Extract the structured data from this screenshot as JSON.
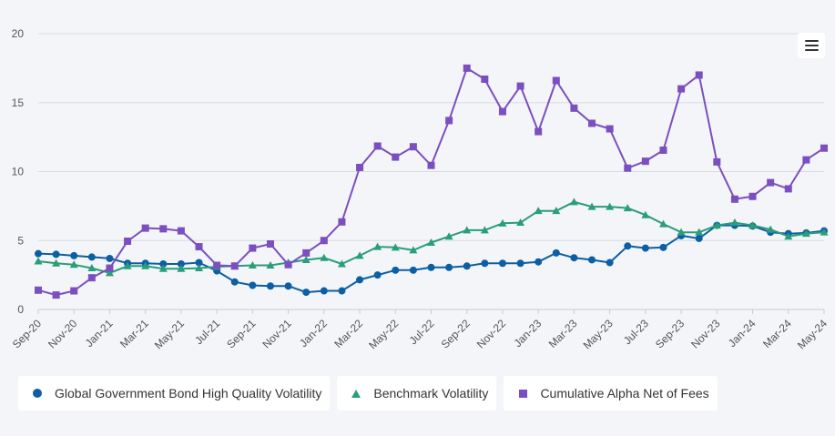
{
  "chart_data": {
    "type": "line",
    "title": "",
    "xlabel": "",
    "ylabel": "",
    "ylim": [
      0,
      20
    ],
    "y_ticks": [
      0,
      5,
      10,
      15,
      20
    ],
    "grid": "horizontal",
    "legend_placement": "bottom",
    "x": [
      "Sep-20",
      "Oct-20",
      "Nov-20",
      "Dec-20",
      "Jan-21",
      "Feb-21",
      "Mar-21",
      "Apr-21",
      "May-21",
      "Jun-21",
      "Jul-21",
      "Aug-21",
      "Sep-21",
      "Oct-21",
      "Nov-21",
      "Dec-21",
      "Jan-22",
      "Feb-22",
      "Mar-22",
      "Apr-22",
      "May-22",
      "Jun-22",
      "Jul-22",
      "Aug-22",
      "Sep-22",
      "Oct-22",
      "Nov-22",
      "Dec-22",
      "Jan-23",
      "Feb-23",
      "Mar-23",
      "Apr-23",
      "May-23",
      "Jun-23",
      "Jul-23",
      "Aug-23",
      "Sep-23",
      "Oct-23",
      "Nov-23",
      "Dec-23",
      "Jan-24",
      "Feb-24",
      "Mar-24",
      "Apr-24",
      "May-24"
    ],
    "x_tick_labels": [
      "Sep-20",
      "Nov-20",
      "Jan-21",
      "Mar-21",
      "May-21",
      "Jul-21",
      "Sep-21",
      "Nov-21",
      "Jan-22",
      "Mar-22",
      "May-22",
      "Jul-22",
      "Sep-22",
      "Nov-22",
      "Jan-23",
      "Mar-23",
      "May-23",
      "Jul-23",
      "Sep-23",
      "Nov-23",
      "Jan-24",
      "Mar-24",
      "May-24"
    ],
    "series": [
      {
        "name": "Global Government Bond High Quality Volatility",
        "color": "#0c5fa4",
        "marker": "circle",
        "values": [
          4.05,
          4.0,
          3.9,
          3.8,
          3.7,
          3.35,
          3.35,
          3.3,
          3.3,
          3.4,
          2.8,
          2.0,
          1.75,
          1.7,
          1.7,
          1.25,
          1.35,
          1.35,
          2.15,
          2.5,
          2.85,
          2.85,
          3.05,
          3.05,
          3.15,
          3.35,
          3.35,
          3.35,
          3.45,
          4.1,
          3.75,
          3.6,
          3.4,
          4.6,
          4.45,
          4.5,
          5.35,
          5.15,
          6.1,
          6.1,
          6.05,
          5.6,
          5.5,
          5.55,
          5.7
        ]
      },
      {
        "name": "Benchmark Volatility",
        "color": "#2a9d7b",
        "marker": "triangle",
        "values": [
          3.5,
          3.35,
          3.25,
          3.0,
          2.65,
          3.15,
          3.15,
          2.95,
          2.95,
          3.0,
          3.1,
          3.15,
          3.2,
          3.2,
          3.4,
          3.6,
          3.75,
          3.3,
          3.9,
          4.55,
          4.5,
          4.3,
          4.85,
          5.3,
          5.75,
          5.75,
          6.25,
          6.3,
          7.15,
          7.15,
          7.8,
          7.45,
          7.45,
          7.35,
          6.85,
          6.2,
          5.6,
          5.6,
          6.1,
          6.3,
          6.1,
          5.8,
          5.3,
          5.5,
          5.6
        ]
      },
      {
        "name": "Cumulative Alpha Net of Fees",
        "color": "#7b4fc0",
        "marker": "square",
        "values": [
          1.4,
          1.05,
          1.35,
          2.3,
          3.0,
          4.95,
          5.9,
          5.85,
          5.7,
          4.55,
          3.2,
          3.15,
          4.45,
          4.75,
          3.25,
          4.1,
          5.0,
          6.35,
          10.3,
          11.85,
          11.05,
          11.8,
          10.45,
          13.7,
          17.5,
          16.7,
          14.35,
          16.2,
          12.9,
          16.6,
          14.6,
          13.5,
          13.1,
          10.25,
          10.75,
          11.55,
          16.0,
          17.0,
          10.7,
          8.0,
          8.2,
          9.2,
          8.75,
          10.85,
          11.7
        ]
      }
    ]
  },
  "menu": {
    "icon": "hamburger-menu-icon"
  }
}
